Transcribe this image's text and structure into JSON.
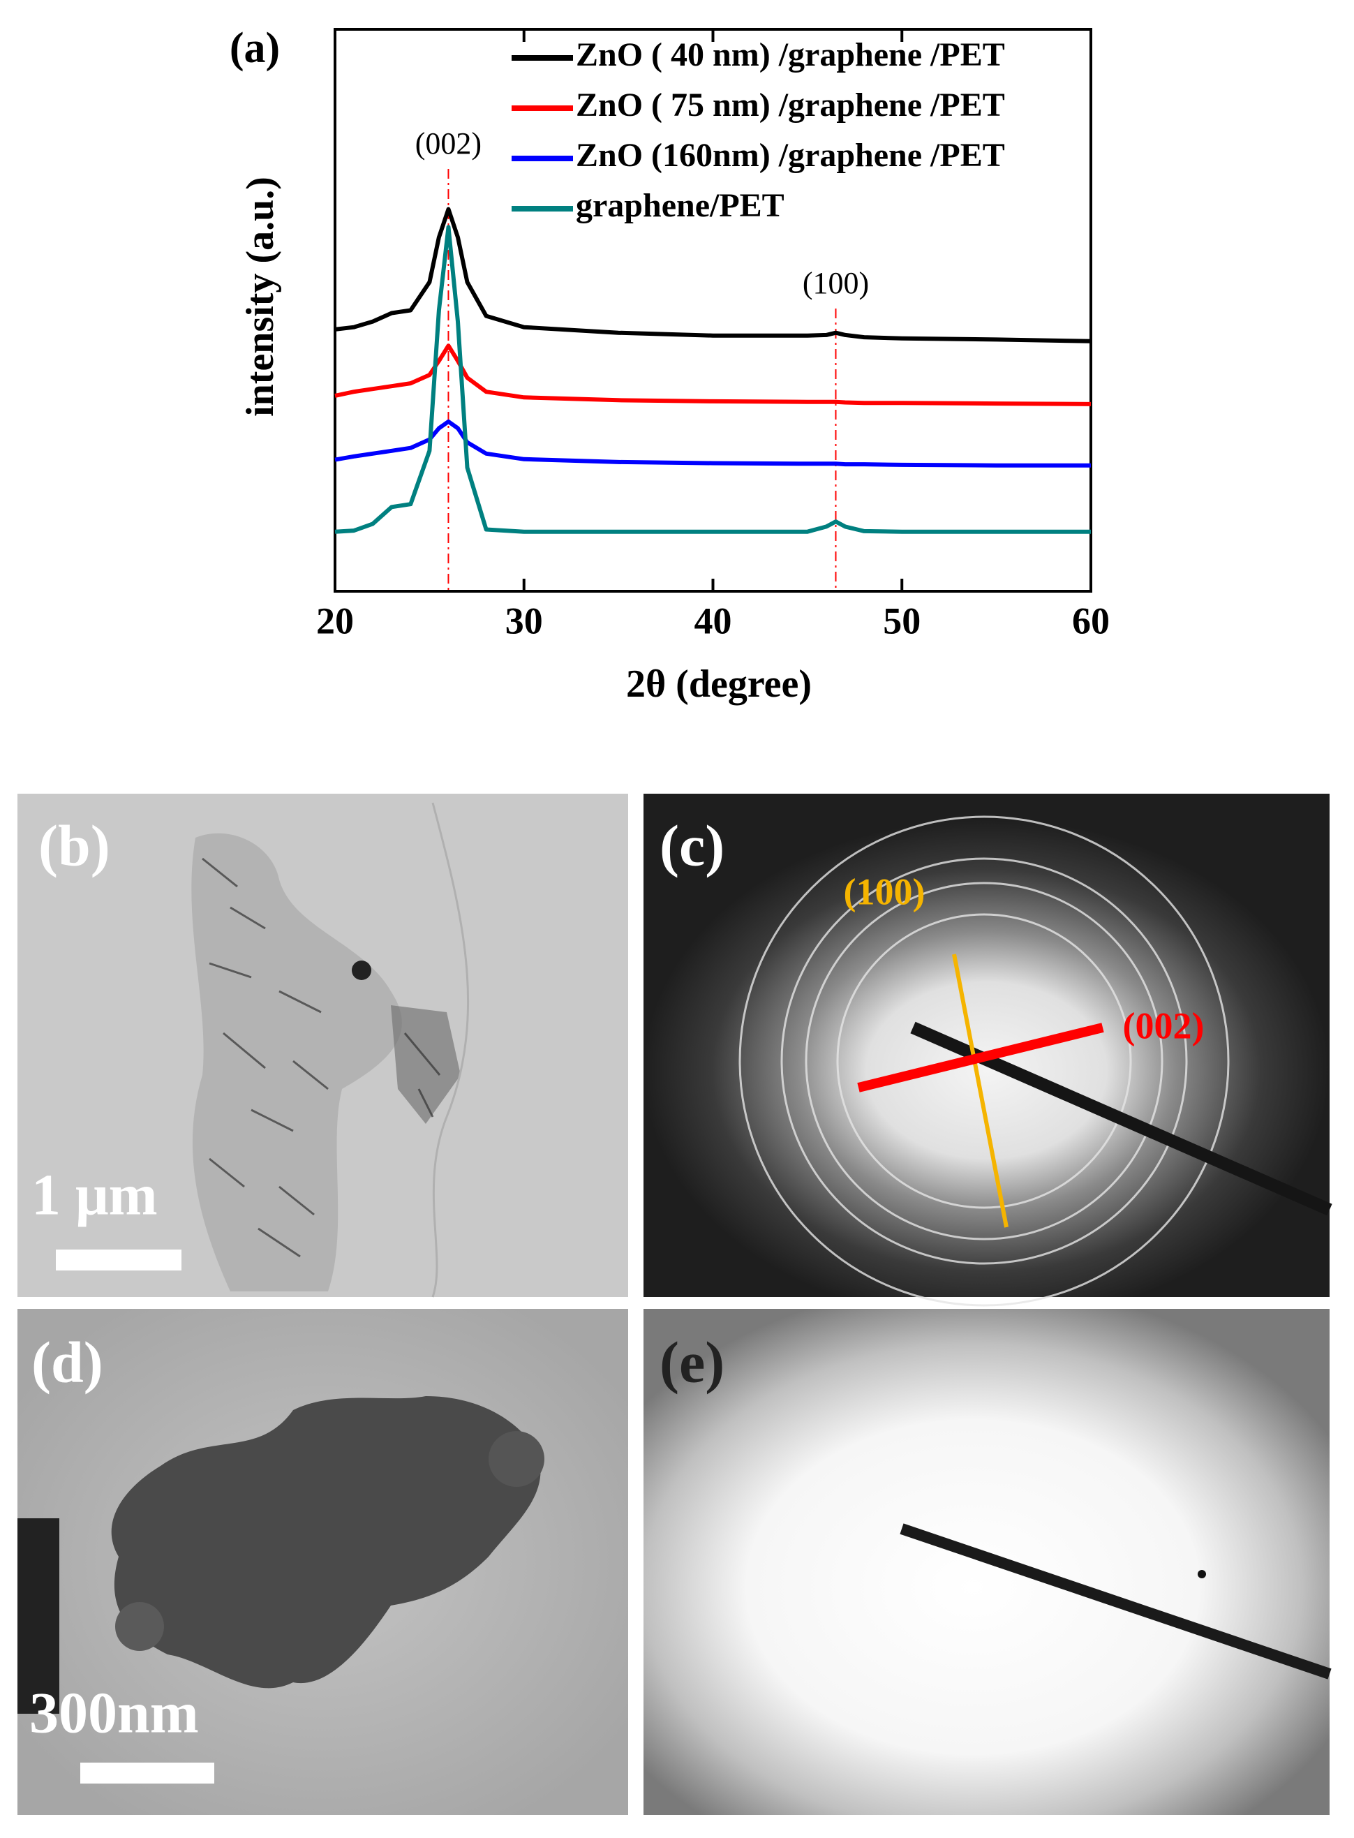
{
  "chart_data": {
    "type": "line",
    "panel_label": "(a)",
    "x_label": "2θ (degree)",
    "y_label": "intensity (a.u.)",
    "xlim": [
      20,
      60
    ],
    "xticks": [
      20,
      30,
      40,
      50,
      60
    ],
    "ylim": [
      0,
      100
    ],
    "legend": "upper right",
    "x": [
      20,
      21,
      22,
      23,
      24,
      25,
      25.5,
      26,
      26.5,
      27,
      28,
      30,
      35,
      40,
      45,
      46,
      46.5,
      47,
      48,
      50,
      55,
      60
    ],
    "series": [
      {
        "name": "ZnO ( 40 nm) /graphene /PET",
        "color": "#000000",
        "values": [
          46.6,
          47,
          48,
          49.5,
          50,
          55,
          63,
          68,
          63,
          55,
          49,
          47,
          46,
          45.5,
          45.5,
          45.6,
          46,
          45.6,
          45.2,
          45,
          44.8,
          44.5
        ]
      },
      {
        "name": "ZnO ( 75 nm) /graphene /PET",
        "color": "#ff0000",
        "values": [
          34.8,
          35.5,
          36,
          36.5,
          37,
          38.5,
          41,
          43.7,
          41,
          38,
          35.5,
          34.5,
          34,
          33.8,
          33.7,
          33.7,
          33.7,
          33.6,
          33.5,
          33.5,
          33.4,
          33.3
        ]
      },
      {
        "name": "ZnO (160nm) /graphene /PET",
        "color": "#0000ff",
        "values": [
          23.4,
          24,
          24.5,
          25,
          25.5,
          27,
          29,
          30.2,
          29,
          26.5,
          24.5,
          23.5,
          23,
          22.8,
          22.7,
          22.7,
          22.7,
          22.6,
          22.6,
          22.5,
          22.4,
          22.4
        ]
      },
      {
        "name": "graphene/PET",
        "color": "#008080",
        "values": [
          10.6,
          10.8,
          12,
          15,
          15.5,
          25,
          50,
          64.8,
          48,
          22,
          11,
          10.6,
          10.6,
          10.6,
          10.6,
          11.5,
          12.4,
          11.5,
          10.7,
          10.6,
          10.6,
          10.6
        ]
      }
    ],
    "annotations": [
      {
        "text": "(002)",
        "x": 26
      },
      {
        "text": "(100)",
        "x": 46.5
      }
    ]
  },
  "panels": {
    "b": {
      "label": "(b)",
      "scale": "1 μm"
    },
    "c": {
      "label": "(c)",
      "ring_1": "(100)",
      "ring_2": "(002)"
    },
    "d": {
      "label": "(d)",
      "scale": "300nm"
    },
    "e": {
      "label": "(e)"
    }
  }
}
